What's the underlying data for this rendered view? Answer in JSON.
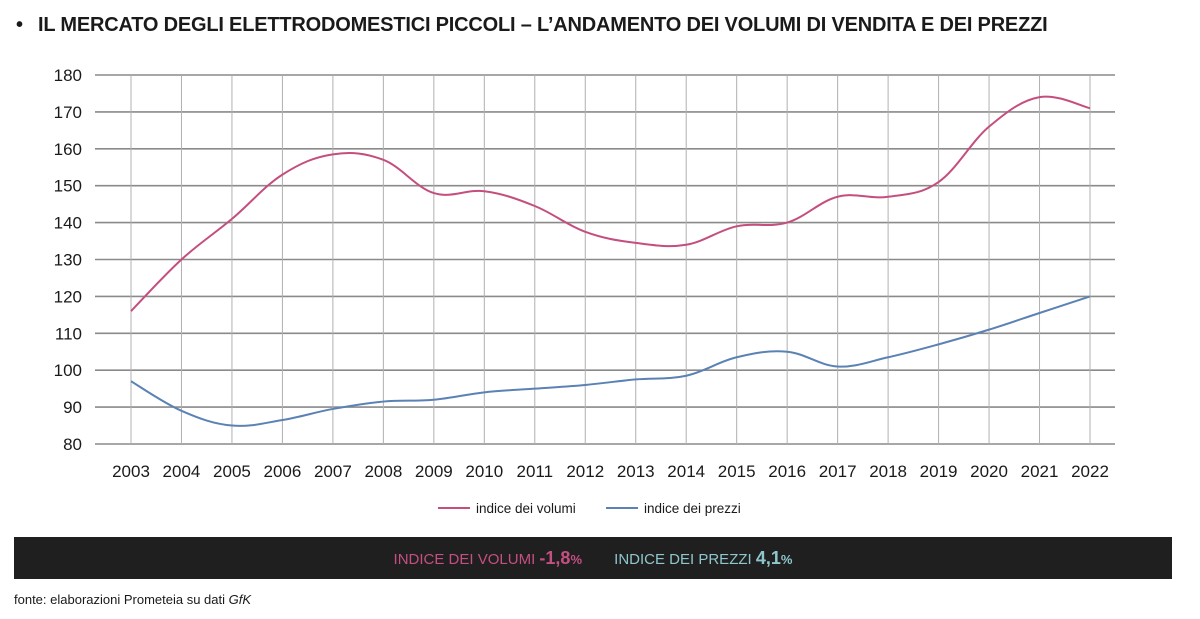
{
  "title": {
    "bullet": "•",
    "text": "IL MERCATO DEGLI ELETTRODOMESTICI PICCOLI – L’ANDAMENTO DEI VOLUMI DI VENDITA E DEI PREZZI"
  },
  "chart_data": {
    "type": "line",
    "x": [
      "2003",
      "2004",
      "2005",
      "2006",
      "2007",
      "2008",
      "2009",
      "2010",
      "2011",
      "2012",
      "2013",
      "2014",
      "2015",
      "2016",
      "2017",
      "2018",
      "2019",
      "2020",
      "2021",
      "2022"
    ],
    "ylim": [
      80,
      180
    ],
    "yticks": [
      180,
      170,
      160,
      150,
      140,
      130,
      120,
      110,
      100,
      90,
      80
    ],
    "grid": true,
    "legend_position": "bottom-center",
    "series": [
      {
        "name": "indice dei volumi",
        "color": "#c44f7e",
        "values": [
          116,
          130,
          141,
          153,
          158.5,
          157,
          148,
          148.5,
          144.5,
          137.5,
          134.5,
          134,
          139,
          140,
          147,
          147,
          151,
          166,
          174,
          171
        ]
      },
      {
        "name": "indice dei prezzi",
        "color": "#5b82b4",
        "values": [
          97,
          89,
          85,
          86.5,
          89.5,
          91.5,
          92,
          94,
          95,
          96,
          97.5,
          98.5,
          103.5,
          105,
          101,
          103.5,
          107,
          111,
          115.5,
          120
        ]
      }
    ]
  },
  "summary": {
    "volumi_label": "INDICE DEI VOLUMI",
    "volumi_value": "-1,8",
    "volumi_pct": "%",
    "prezzi_label": "INDICE DEI PREZZI",
    "prezzi_value": "4,1",
    "prezzi_pct": "%"
  },
  "source": {
    "text": "fonte: elaborazioni Prometeia su dati ",
    "emph": "GfK"
  }
}
